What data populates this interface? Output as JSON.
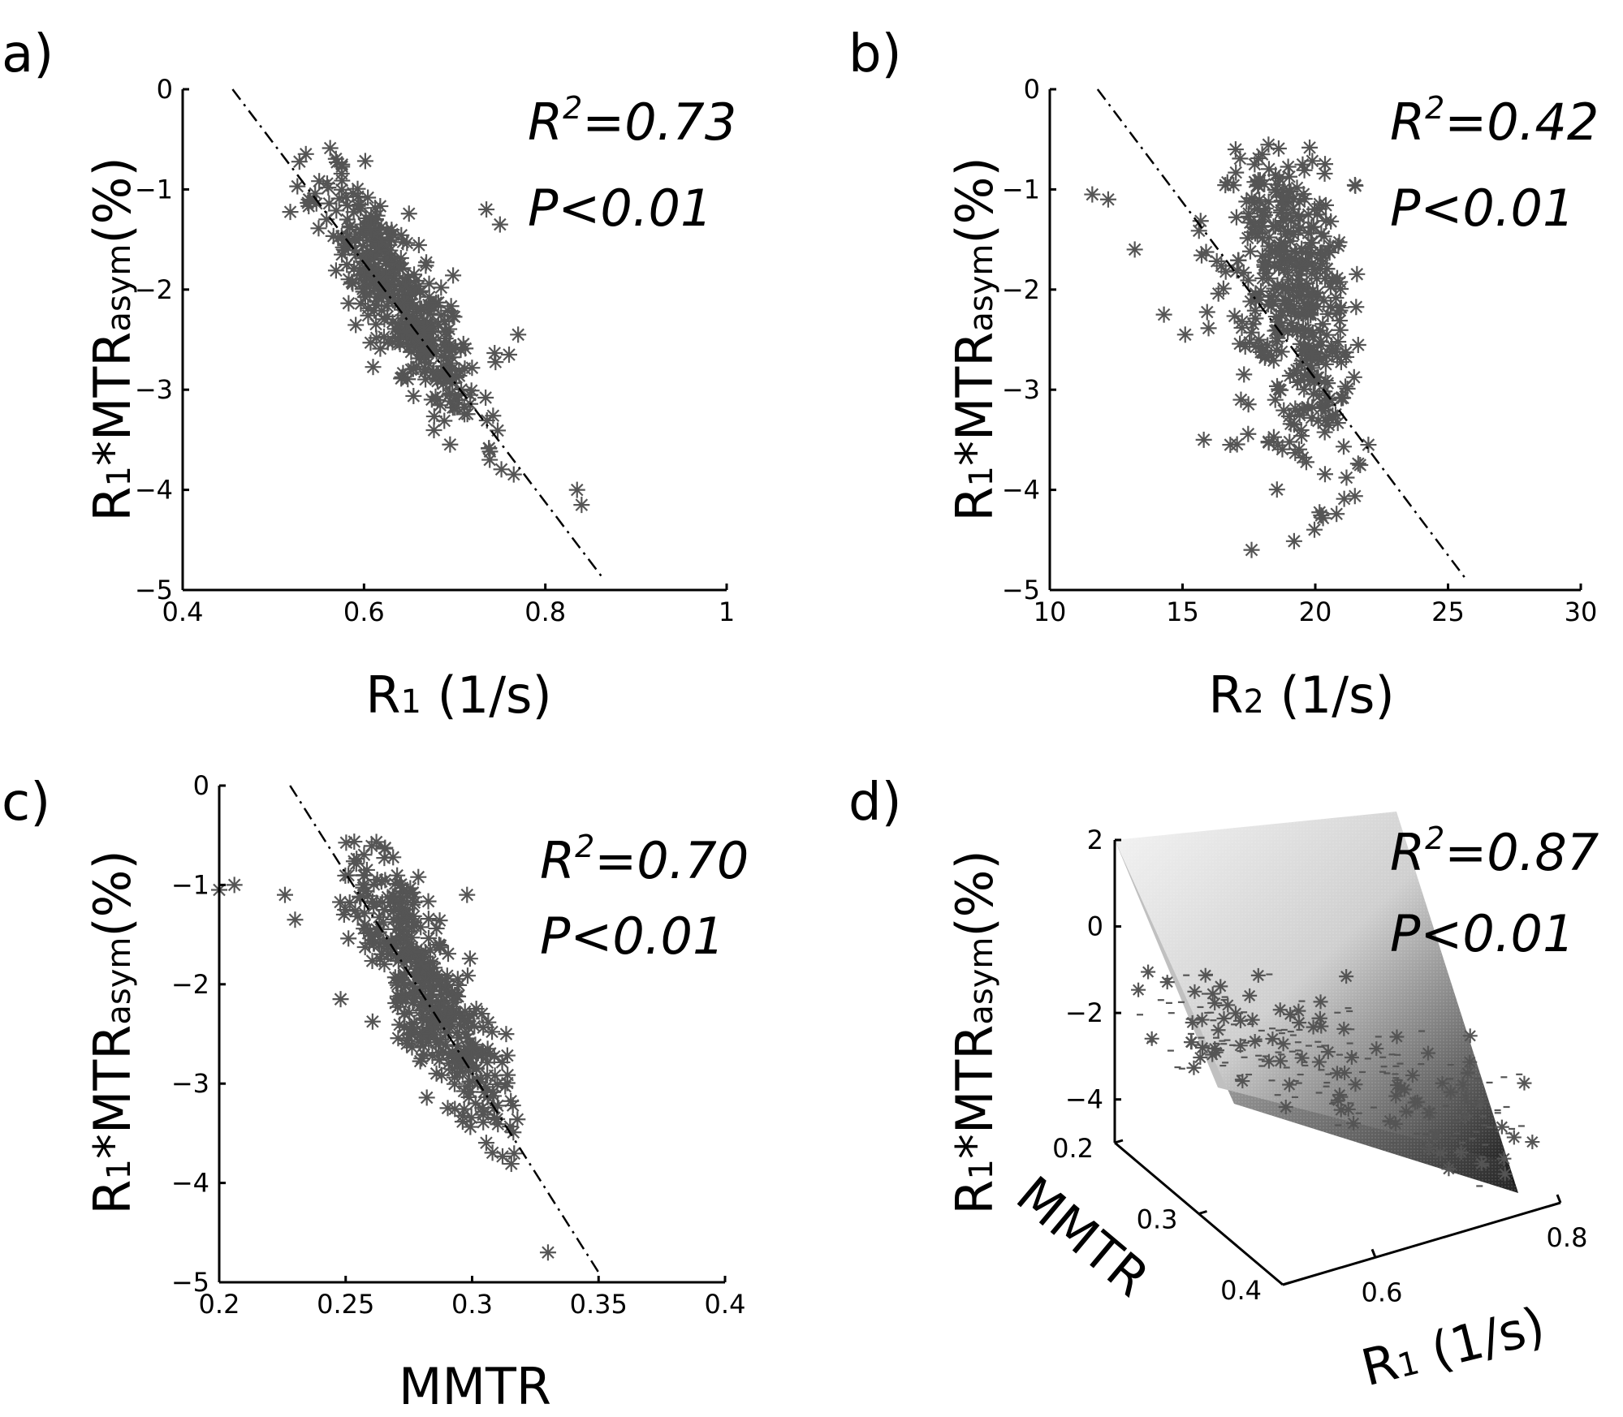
{
  "chart_data": [
    {
      "id": "a",
      "type": "scatter",
      "panel_label": "a)",
      "title": "",
      "xlabel": {
        "main": "R",
        "sub": "1",
        "rest": " (1/s)"
      },
      "ylabel": {
        "main": "R",
        "sub": "1",
        "mid": "*MTR",
        "sub2": "asym",
        "rest": "(%)"
      },
      "xlim": [
        0.4,
        1.0
      ],
      "ylim": [
        -5,
        0
      ],
      "xticks": [
        0.4,
        0.6,
        0.8,
        1
      ],
      "xtick_labels": [
        "0.4",
        "0.6",
        "0.8",
        "1"
      ],
      "yticks": [
        0,
        -1,
        -2,
        -3,
        -4,
        -5
      ],
      "ytick_labels": [
        "0",
        "−1",
        "−2",
        "−3",
        "−4",
        "−5"
      ],
      "annotation": {
        "r2_prefix": "R",
        "r2_sup": "2",
        "r2_value": "=0.73",
        "p_text": "P<0.01"
      },
      "fit_line": {
        "x": [
          0.455,
          0.865
        ],
        "y": [
          0.0,
          -4.9
        ]
      },
      "cluster": {
        "x_center": 0.64,
        "x_sd": 0.045,
        "slope": -12.0,
        "intercept": 5.6,
        "noise_sd": 0.35,
        "count": 420,
        "x_min": 0.51,
        "x_max": 0.85
      },
      "extra_points": [
        {
          "x": 0.735,
          "y": -1.2
        },
        {
          "x": 0.75,
          "y": -1.35
        },
        {
          "x": 0.77,
          "y": -2.45
        },
        {
          "x": 0.76,
          "y": -2.65
        },
        {
          "x": 0.835,
          "y": -4.0
        },
        {
          "x": 0.84,
          "y": -4.15
        }
      ],
      "seed": 11
    },
    {
      "id": "b",
      "type": "scatter",
      "panel_label": "b)",
      "title": "",
      "xlabel": {
        "main": "R",
        "sub": "2",
        "rest": " (1/s)"
      },
      "ylabel": {
        "main": "R",
        "sub": "1",
        "mid": "*MTR",
        "sub2": "asym",
        "rest": "(%)"
      },
      "xlim": [
        10,
        30
      ],
      "ylim": [
        -5,
        0
      ],
      "xticks": [
        10,
        15,
        20,
        25,
        30
      ],
      "xtick_labels": [
        "10",
        "15",
        "20",
        "25",
        "30"
      ],
      "yticks": [
        0,
        -1,
        -2,
        -3,
        -4,
        -5
      ],
      "ytick_labels": [
        "0",
        "−1",
        "−2",
        "−3",
        "−4",
        "−5"
      ],
      "annotation": {
        "r2_prefix": "R",
        "r2_sup": "2",
        "r2_value": "=0.42",
        "p_text": "P<0.01"
      },
      "fit_line": {
        "x": [
          11.8,
          25.7
        ],
        "y": [
          0.0,
          -4.9
        ]
      },
      "cluster": {
        "x_center": 19.2,
        "x_sd": 1.3,
        "slope": -0.3,
        "intercept": 3.6,
        "noise_sd": 0.8,
        "count": 420,
        "x_min": 14.5,
        "x_max": 21.8
      },
      "extra_points": [
        {
          "x": 11.6,
          "y": -1.05
        },
        {
          "x": 12.2,
          "y": -1.1
        },
        {
          "x": 13.2,
          "y": -1.6
        },
        {
          "x": 14.3,
          "y": -2.25
        },
        {
          "x": 15.1,
          "y": -2.45
        },
        {
          "x": 15.8,
          "y": -3.5
        },
        {
          "x": 17.6,
          "y": -4.6
        },
        {
          "x": 17.2,
          "y": -3.1
        },
        {
          "x": 16.8,
          "y": -3.55
        },
        {
          "x": 22.0,
          "y": -3.55
        },
        {
          "x": 17.0,
          "y": -0.6
        },
        {
          "x": 18.0,
          "y": -0.65
        }
      ],
      "seed": 23
    },
    {
      "id": "c",
      "type": "scatter",
      "panel_label": "c)",
      "title": "",
      "xlabel": {
        "main": "MMTR",
        "sub": "",
        "rest": ""
      },
      "ylabel": {
        "main": "R",
        "sub": "1",
        "mid": "*MTR",
        "sub2": "asym",
        "rest": "(%)"
      },
      "xlim": [
        0.2,
        0.4
      ],
      "ylim": [
        -5,
        0
      ],
      "xticks": [
        0.2,
        0.25,
        0.3,
        0.35,
        0.4
      ],
      "xtick_labels": [
        "0.2",
        "0.25",
        "0.3",
        "0.35",
        "0.4"
      ],
      "yticks": [
        0,
        -1,
        -2,
        -3,
        -4,
        -5
      ],
      "ytick_labels": [
        "0",
        "−1",
        "−2",
        "−3",
        "−4",
        "−5"
      ],
      "annotation": {
        "r2_prefix": "R",
        "r2_sup": "2",
        "r2_value": "=0.70",
        "p_text": "P<0.01"
      },
      "fit_line": {
        "x": [
          0.228,
          0.35
        ],
        "y": [
          0.0,
          -4.9
        ]
      },
      "cluster": {
        "x_center": 0.282,
        "x_sd": 0.015,
        "slope": -38.0,
        "intercept": 8.7,
        "noise_sd": 0.4,
        "count": 420,
        "x_min": 0.235,
        "x_max": 0.332
      },
      "extra_points": [
        {
          "x": 0.2,
          "y": -1.05
        },
        {
          "x": 0.206,
          "y": -1.0
        },
        {
          "x": 0.226,
          "y": -1.1
        },
        {
          "x": 0.23,
          "y": -1.35
        },
        {
          "x": 0.248,
          "y": -2.15
        },
        {
          "x": 0.298,
          "y": -1.1
        },
        {
          "x": 0.33,
          "y": -4.7
        }
      ],
      "seed": 37
    },
    {
      "id": "d",
      "type": "scatter",
      "panel_label": "d)",
      "title": "",
      "xlabel": {
        "main": "R",
        "sub": "1",
        "rest": " (1/s)"
      },
      "ylabel": {
        "main": "R",
        "sub": "1",
        "mid": "*MTR",
        "sub2": "asym",
        "rest": "(%)"
      },
      "zlabel": "MMTR",
      "xlim": [
        0.5,
        0.8
      ],
      "zlim": [
        0.2,
        0.4
      ],
      "ylim": [
        -5,
        2
      ],
      "xticks": [
        0.6,
        0.8
      ],
      "xtick_labels": [
        "0.6",
        "0.8"
      ],
      "zticks": [
        0.2,
        0.3,
        0.4
      ],
      "ztick_labels": [
        "0.2",
        "0.3",
        "0.4"
      ],
      "yticks": [
        2,
        0,
        -2,
        -4
      ],
      "ytick_labels": [
        "2",
        "0",
        "−2",
        "−4"
      ],
      "annotation": {
        "r2_prefix": "R",
        "r2_sup": "2",
        "r2_value": "=0.87",
        "p_text": "P<0.01"
      },
      "surface": {
        "colormap": "gray"
      },
      "seed": 51
    }
  ]
}
